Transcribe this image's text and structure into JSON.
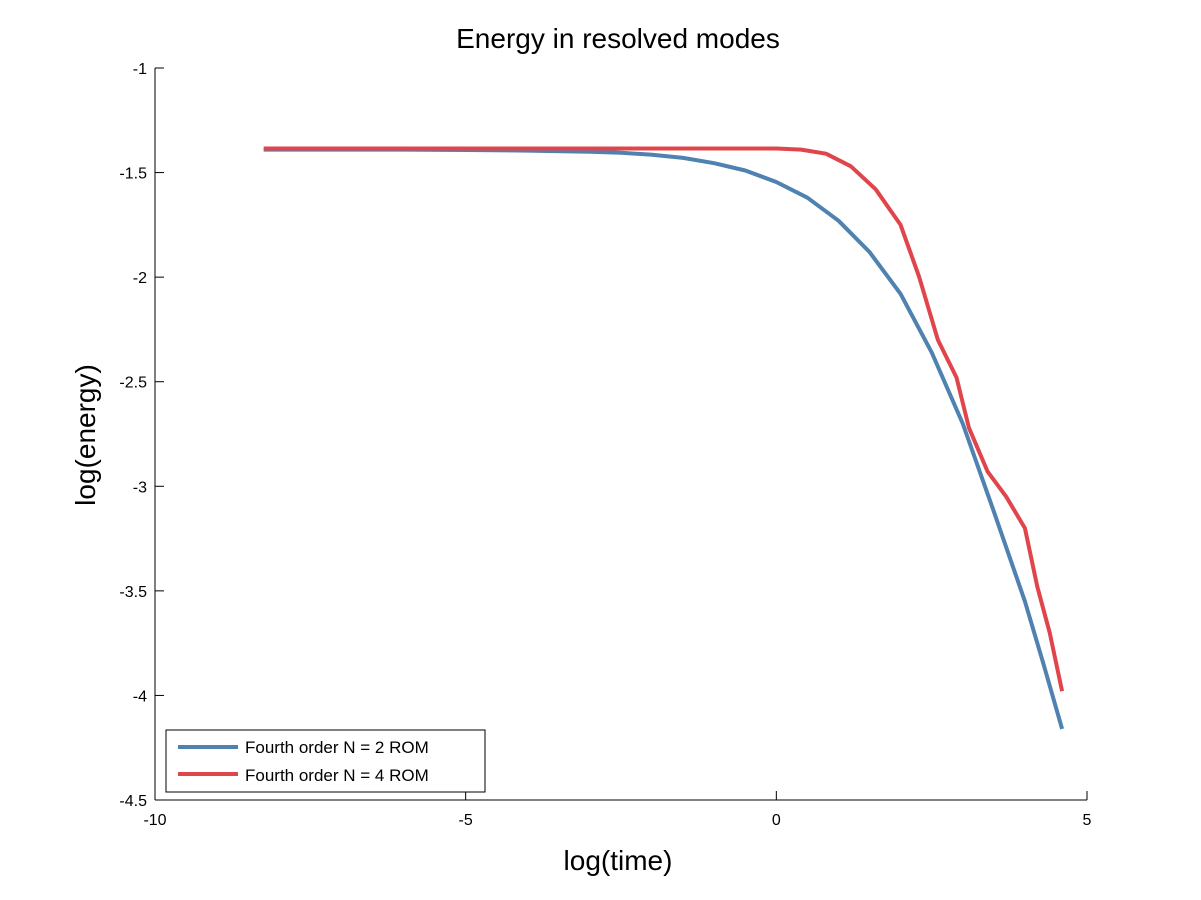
{
  "chart_data": {
    "type": "line",
    "title": "Energy in resolved modes",
    "xlabel": "log(time)",
    "ylabel": "log(energy)",
    "xlim": [
      -10,
      5
    ],
    "ylim": [
      -4.5,
      -1
    ],
    "xticks": [
      -10,
      -5,
      0,
      5
    ],
    "xtick_labels": [
      "-10",
      "-5",
      "0",
      "5"
    ],
    "yticks": [
      -4.5,
      -4,
      -3.5,
      -3,
      -2.5,
      -2,
      -1.5,
      -1
    ],
    "ytick_labels": [
      "-4.5",
      "-4",
      "-3.5",
      "-3",
      "-2.5",
      "-2",
      "-1.5",
      "-1"
    ],
    "grid": false,
    "legend_position": "bottom-left",
    "series": [
      {
        "name": "Fourth order N = 2 ROM",
        "color": "#4f81b1",
        "x": [
          -8.25,
          -6,
          -5,
          -4,
          -3,
          -2.5,
          -2,
          -1.5,
          -1,
          -0.5,
          0,
          0.5,
          1,
          1.5,
          2,
          2.5,
          3,
          3.5,
          4,
          4.3,
          4.6
        ],
        "y": [
          -1.39,
          -1.39,
          -1.392,
          -1.395,
          -1.4,
          -1.405,
          -1.415,
          -1.43,
          -1.455,
          -1.49,
          -1.545,
          -1.62,
          -1.73,
          -1.88,
          -2.08,
          -2.36,
          -2.7,
          -3.12,
          -3.55,
          -3.85,
          -4.16
        ]
      },
      {
        "name": "Fourth order N = 4 ROM",
        "color": "#e0454b",
        "x": [
          -8.25,
          -6,
          -4,
          -2,
          -1,
          0,
          0.4,
          0.8,
          1.2,
          1.6,
          2.0,
          2.3,
          2.6,
          2.9,
          3.1,
          3.4,
          3.7,
          4.0,
          4.2,
          4.4,
          4.6
        ],
        "y": [
          -1.385,
          -1.385,
          -1.385,
          -1.385,
          -1.385,
          -1.385,
          -1.39,
          -1.41,
          -1.47,
          -1.58,
          -1.75,
          -2.0,
          -2.3,
          -2.48,
          -2.72,
          -2.93,
          -3.05,
          -3.2,
          -3.48,
          -3.7,
          -3.98
        ]
      }
    ]
  }
}
